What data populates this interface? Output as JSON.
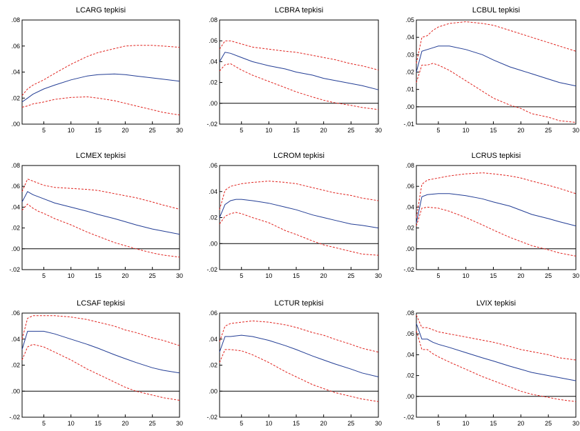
{
  "chart_data": [
    {
      "type": "line",
      "title": "LCARG tepkisi",
      "xlim": [
        1,
        30
      ],
      "ylim": [
        0.0,
        0.08
      ],
      "xticks": [
        5,
        10,
        15,
        20,
        25,
        30
      ],
      "xtick_labels": [
        "5",
        "10",
        "15",
        "20",
        "25",
        "30"
      ],
      "yticks": [
        0.0,
        0.02,
        0.04,
        0.06,
        0.08
      ],
      "ytick_labels": [
        ".00",
        ".02",
        ".04",
        ".06",
        ".08"
      ],
      "zero_line": false,
      "x": [
        1,
        2,
        3,
        5,
        7,
        10,
        13,
        15,
        18,
        20,
        22,
        25,
        27,
        30
      ],
      "series": [
        {
          "role": "response",
          "color": "#1f3a93",
          "dash": false,
          "values": [
            0.017,
            0.02,
            0.023,
            0.027,
            0.03,
            0.034,
            0.037,
            0.038,
            0.0385,
            0.038,
            0.037,
            0.0355,
            0.0345,
            0.033
          ]
        },
        {
          "role": "upper",
          "color": "#e0201b",
          "dash": true,
          "values": [
            0.022,
            0.027,
            0.03,
            0.034,
            0.039,
            0.046,
            0.052,
            0.055,
            0.058,
            0.06,
            0.0605,
            0.0605,
            0.06,
            0.059
          ]
        },
        {
          "role": "lower",
          "color": "#e0201b",
          "dash": true,
          "values": [
            0.013,
            0.014,
            0.0155,
            0.017,
            0.019,
            0.0205,
            0.021,
            0.02,
            0.018,
            0.016,
            0.014,
            0.011,
            0.009,
            0.007
          ]
        }
      ]
    },
    {
      "type": "line",
      "title": "LCBRA tepkisi",
      "xlim": [
        1,
        30
      ],
      "ylim": [
        -0.02,
        0.08
      ],
      "xticks": [
        5,
        10,
        15,
        20,
        25,
        30
      ],
      "xtick_labels": [
        "5",
        "10",
        "15",
        "20",
        "25",
        "30"
      ],
      "yticks": [
        -0.02,
        0.0,
        0.02,
        0.04,
        0.06,
        0.08
      ],
      "ytick_labels": [
        "-.02",
        ".00",
        ".02",
        ".04",
        ".06",
        ".08"
      ],
      "zero_line": true,
      "x": [
        1,
        2,
        3,
        5,
        7,
        10,
        13,
        15,
        18,
        20,
        22,
        25,
        27,
        30
      ],
      "series": [
        {
          "role": "response",
          "color": "#1f3a93",
          "dash": false,
          "values": [
            0.04,
            0.049,
            0.048,
            0.044,
            0.04,
            0.036,
            0.033,
            0.03,
            0.027,
            0.024,
            0.022,
            0.019,
            0.017,
            0.013
          ]
        },
        {
          "role": "upper",
          "color": "#e0201b",
          "dash": true,
          "values": [
            0.052,
            0.06,
            0.06,
            0.057,
            0.054,
            0.052,
            0.05,
            0.049,
            0.046,
            0.044,
            0.042,
            0.038,
            0.036,
            0.032
          ]
        },
        {
          "role": "lower",
          "color": "#e0201b",
          "dash": true,
          "values": [
            0.031,
            0.037,
            0.038,
            0.032,
            0.027,
            0.021,
            0.015,
            0.011,
            0.006,
            0.003,
            0.0005,
            -0.002,
            -0.004,
            -0.006
          ]
        }
      ]
    },
    {
      "type": "line",
      "title": "LCBUL tepkisi",
      "xlim": [
        1,
        30
      ],
      "ylim": [
        -0.01,
        0.05
      ],
      "xticks": [
        5,
        10,
        15,
        20,
        25,
        30
      ],
      "xtick_labels": [
        "5",
        "10",
        "15",
        "20",
        "25",
        "30"
      ],
      "yticks": [
        -0.01,
        0.0,
        0.01,
        0.02,
        0.03,
        0.04,
        0.05
      ],
      "ytick_labels": [
        "-.01",
        ".00",
        ".01",
        ".02",
        ".03",
        ".04",
        ".05"
      ],
      "zero_line": true,
      "x": [
        1,
        2,
        3,
        4,
        5,
        7,
        10,
        13,
        15,
        18,
        20,
        22,
        25,
        27,
        30
      ],
      "series": [
        {
          "role": "response",
          "color": "#1f3a93",
          "dash": false,
          "values": [
            0.02,
            0.032,
            0.033,
            0.034,
            0.035,
            0.035,
            0.033,
            0.03,
            0.027,
            0.023,
            0.021,
            0.019,
            0.016,
            0.014,
            0.012
          ]
        },
        {
          "role": "upper",
          "color": "#e0201b",
          "dash": true,
          "values": [
            0.025,
            0.04,
            0.041,
            0.044,
            0.046,
            0.048,
            0.049,
            0.048,
            0.047,
            0.044,
            0.042,
            0.04,
            0.037,
            0.035,
            0.032
          ]
        },
        {
          "role": "lower",
          "color": "#e0201b",
          "dash": true,
          "values": [
            0.014,
            0.024,
            0.024,
            0.025,
            0.024,
            0.021,
            0.015,
            0.009,
            0.005,
            0.001,
            -0.001,
            -0.004,
            -0.006,
            -0.008,
            -0.009
          ]
        }
      ]
    },
    {
      "type": "line",
      "title": "LCMEX tepkisi",
      "xlim": [
        1,
        30
      ],
      "ylim": [
        -0.02,
        0.08
      ],
      "xticks": [
        5,
        10,
        15,
        20,
        25,
        30
      ],
      "xtick_labels": [
        "5",
        "10",
        "15",
        "20",
        "25",
        "30"
      ],
      "yticks": [
        -0.02,
        0.0,
        0.02,
        0.04,
        0.06,
        0.08
      ],
      "ytick_labels": [
        "-.02",
        ".00",
        ".02",
        ".04",
        ".06",
        ".08"
      ],
      "zero_line": true,
      "x": [
        1,
        2,
        3,
        4,
        5,
        7,
        10,
        13,
        15,
        18,
        20,
        22,
        25,
        27,
        30
      ],
      "series": [
        {
          "role": "response",
          "color": "#1f3a93",
          "dash": false,
          "values": [
            0.045,
            0.055,
            0.052,
            0.05,
            0.048,
            0.044,
            0.04,
            0.036,
            0.033,
            0.029,
            0.026,
            0.023,
            0.019,
            0.017,
            0.014
          ]
        },
        {
          "role": "upper",
          "color": "#e0201b",
          "dash": true,
          "values": [
            0.055,
            0.067,
            0.065,
            0.063,
            0.061,
            0.059,
            0.058,
            0.057,
            0.056,
            0.053,
            0.051,
            0.049,
            0.045,
            0.042,
            0.038
          ]
        },
        {
          "role": "lower",
          "color": "#e0201b",
          "dash": true,
          "values": [
            0.037,
            0.043,
            0.039,
            0.036,
            0.034,
            0.029,
            0.023,
            0.016,
            0.012,
            0.006,
            0.003,
            0.0,
            -0.004,
            -0.006,
            -0.008
          ]
        }
      ]
    },
    {
      "type": "line",
      "title": "LCROM tepkisi",
      "xlim": [
        1,
        30
      ],
      "ylim": [
        -0.02,
        0.06
      ],
      "xticks": [
        5,
        10,
        15,
        20,
        25,
        30
      ],
      "xtick_labels": [
        "5",
        "10",
        "15",
        "20",
        "25",
        "30"
      ],
      "yticks": [
        -0.02,
        0.0,
        0.02,
        0.04,
        0.06
      ],
      "ytick_labels": [
        "-.02",
        ".00",
        ".02",
        ".04",
        ".06"
      ],
      "zero_line": true,
      "x": [
        1,
        2,
        3,
        4,
        5,
        7,
        10,
        13,
        15,
        18,
        20,
        22,
        25,
        27,
        30
      ],
      "series": [
        {
          "role": "response",
          "color": "#1f3a93",
          "dash": false,
          "values": [
            0.02,
            0.03,
            0.033,
            0.034,
            0.034,
            0.033,
            0.031,
            0.028,
            0.026,
            0.022,
            0.02,
            0.018,
            0.015,
            0.014,
            0.012
          ]
        },
        {
          "role": "upper",
          "color": "#e0201b",
          "dash": true,
          "values": [
            0.026,
            0.041,
            0.044,
            0.045,
            0.046,
            0.047,
            0.048,
            0.047,
            0.046,
            0.043,
            0.041,
            0.039,
            0.037,
            0.035,
            0.033
          ]
        },
        {
          "role": "lower",
          "color": "#e0201b",
          "dash": true,
          "values": [
            0.015,
            0.021,
            0.023,
            0.024,
            0.023,
            0.02,
            0.016,
            0.01,
            0.007,
            0.002,
            -0.001,
            -0.003,
            -0.006,
            -0.008,
            -0.009
          ]
        }
      ]
    },
    {
      "type": "line",
      "title": "LCRUS tepkisi",
      "xlim": [
        1,
        30
      ],
      "ylim": [
        -0.02,
        0.08
      ],
      "xticks": [
        5,
        10,
        15,
        20,
        25,
        30
      ],
      "xtick_labels": [
        "5",
        "10",
        "15",
        "20",
        "25",
        "30"
      ],
      "yticks": [
        -0.02,
        0.0,
        0.02,
        0.04,
        0.06,
        0.08
      ],
      "ytick_labels": [
        "-.02",
        ".00",
        ".02",
        ".04",
        ".06",
        ".08"
      ],
      "zero_line": true,
      "x": [
        1,
        2,
        3,
        5,
        7,
        10,
        13,
        15,
        18,
        20,
        22,
        25,
        27,
        30
      ],
      "series": [
        {
          "role": "response",
          "color": "#1f3a93",
          "dash": false,
          "values": [
            0.025,
            0.05,
            0.052,
            0.053,
            0.053,
            0.051,
            0.048,
            0.045,
            0.041,
            0.037,
            0.033,
            0.029,
            0.026,
            0.022
          ]
        },
        {
          "role": "upper",
          "color": "#e0201b",
          "dash": true,
          "values": [
            0.03,
            0.062,
            0.066,
            0.068,
            0.07,
            0.072,
            0.073,
            0.072,
            0.07,
            0.068,
            0.065,
            0.061,
            0.058,
            0.053
          ]
        },
        {
          "role": "lower",
          "color": "#e0201b",
          "dash": true,
          "values": [
            0.022,
            0.039,
            0.04,
            0.039,
            0.036,
            0.03,
            0.023,
            0.018,
            0.011,
            0.007,
            0.003,
            -0.001,
            -0.004,
            -0.007
          ]
        }
      ]
    },
    {
      "type": "line",
      "title": "LCSAF tepkisi",
      "xlim": [
        1,
        30
      ],
      "ylim": [
        -0.02,
        0.06
      ],
      "xticks": [
        5,
        10,
        15,
        20,
        25,
        30
      ],
      "xtick_labels": [
        "5",
        "10",
        "15",
        "20",
        "25",
        "30"
      ],
      "yticks": [
        -0.02,
        0.0,
        0.02,
        0.04,
        0.06
      ],
      "ytick_labels": [
        "-.02",
        ".00",
        ".02",
        ".04",
        ".06"
      ],
      "zero_line": true,
      "x": [
        1,
        2,
        3,
        5,
        7,
        10,
        13,
        15,
        18,
        20,
        22,
        25,
        27,
        30
      ],
      "series": [
        {
          "role": "response",
          "color": "#1f3a93",
          "dash": false,
          "values": [
            0.032,
            0.046,
            0.046,
            0.046,
            0.044,
            0.04,
            0.036,
            0.033,
            0.028,
            0.025,
            0.022,
            0.018,
            0.016,
            0.014
          ]
        },
        {
          "role": "upper",
          "color": "#e0201b",
          "dash": true,
          "values": [
            0.04,
            0.056,
            0.058,
            0.058,
            0.058,
            0.057,
            0.055,
            0.053,
            0.05,
            0.047,
            0.045,
            0.041,
            0.039,
            0.035
          ]
        },
        {
          "role": "lower",
          "color": "#e0201b",
          "dash": true,
          "values": [
            0.024,
            0.034,
            0.036,
            0.034,
            0.03,
            0.024,
            0.017,
            0.013,
            0.007,
            0.003,
            0.0,
            -0.003,
            -0.005,
            -0.007
          ]
        }
      ]
    },
    {
      "type": "line",
      "title": "LCTUR tepkisi",
      "xlim": [
        1,
        30
      ],
      "ylim": [
        -0.02,
        0.06
      ],
      "xticks": [
        5,
        10,
        15,
        20,
        25,
        30
      ],
      "xtick_labels": [
        "5",
        "10",
        "15",
        "20",
        "25",
        "30"
      ],
      "yticks": [
        -0.02,
        0.0,
        0.02,
        0.04,
        0.06
      ],
      "ytick_labels": [
        "-.02",
        ".00",
        ".02",
        ".04",
        ".06"
      ],
      "zero_line": true,
      "x": [
        1,
        2,
        3,
        5,
        7,
        10,
        13,
        15,
        18,
        20,
        22,
        25,
        27,
        30
      ],
      "series": [
        {
          "role": "response",
          "color": "#1f3a93",
          "dash": false,
          "values": [
            0.03,
            0.042,
            0.042,
            0.043,
            0.042,
            0.039,
            0.035,
            0.032,
            0.027,
            0.024,
            0.021,
            0.017,
            0.014,
            0.011
          ]
        },
        {
          "role": "upper",
          "color": "#e0201b",
          "dash": true,
          "values": [
            0.038,
            0.05,
            0.052,
            0.053,
            0.054,
            0.053,
            0.051,
            0.049,
            0.045,
            0.043,
            0.04,
            0.036,
            0.033,
            0.03
          ]
        },
        {
          "role": "lower",
          "color": "#e0201b",
          "dash": true,
          "values": [
            0.022,
            0.032,
            0.032,
            0.031,
            0.028,
            0.022,
            0.015,
            0.011,
            0.005,
            0.002,
            -0.001,
            -0.004,
            -0.006,
            -0.008
          ]
        }
      ]
    },
    {
      "type": "line",
      "title": "LVIX tepkisi",
      "xlim": [
        1,
        30
      ],
      "ylim": [
        -0.02,
        0.08
      ],
      "xticks": [
        5,
        10,
        15,
        20,
        25,
        30
      ],
      "xtick_labels": [
        "5",
        "10",
        "15",
        "20",
        "25",
        "30"
      ],
      "yticks": [
        -0.02,
        0.0,
        0.02,
        0.04,
        0.06,
        0.08
      ],
      "ytick_labels": [
        "-.02",
        ".00",
        ".02",
        ".04",
        ".06",
        ".08"
      ],
      "zero_line": true,
      "x": [
        1,
        2,
        3,
        4,
        5,
        7,
        10,
        13,
        15,
        18,
        20,
        22,
        25,
        27,
        30
      ],
      "series": [
        {
          "role": "response",
          "color": "#1f3a93",
          "dash": false,
          "values": [
            0.07,
            0.055,
            0.055,
            0.052,
            0.05,
            0.047,
            0.042,
            0.037,
            0.034,
            0.029,
            0.026,
            0.023,
            0.02,
            0.018,
            0.015
          ]
        },
        {
          "role": "upper",
          "color": "#e0201b",
          "dash": true,
          "values": [
            0.078,
            0.066,
            0.066,
            0.064,
            0.062,
            0.06,
            0.057,
            0.054,
            0.052,
            0.048,
            0.045,
            0.043,
            0.04,
            0.037,
            0.035
          ]
        },
        {
          "role": "lower",
          "color": "#e0201b",
          "dash": true,
          "values": [
            0.063,
            0.045,
            0.045,
            0.041,
            0.038,
            0.033,
            0.026,
            0.019,
            0.015,
            0.009,
            0.005,
            0.002,
            -0.001,
            -0.003,
            -0.005
          ]
        }
      ]
    }
  ]
}
